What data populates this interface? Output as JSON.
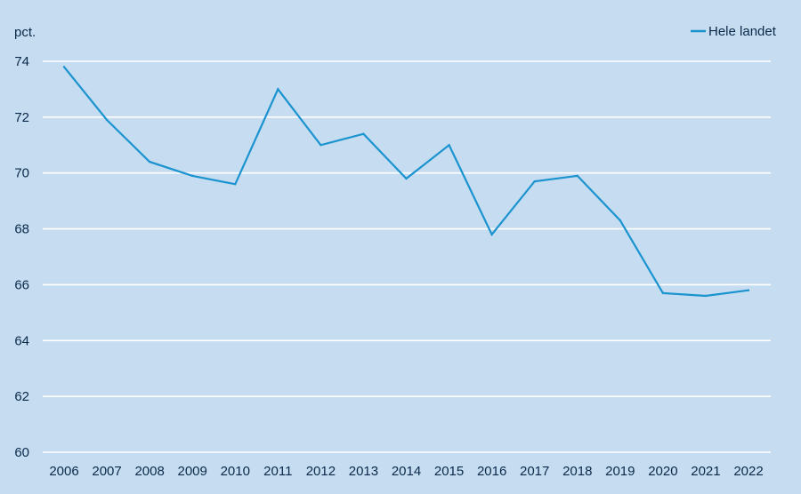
{
  "chart_data": {
    "type": "line",
    "ylabel": "pct.",
    "ylim": [
      60,
      74
    ],
    "yticks": [
      60,
      62,
      64,
      66,
      68,
      70,
      72,
      74
    ],
    "categories": [
      "2006",
      "2007",
      "2008",
      "2009",
      "2010",
      "2011",
      "2012",
      "2013",
      "2014",
      "2015",
      "2016",
      "2017",
      "2018",
      "2019",
      "2020",
      "2021",
      "2022"
    ],
    "series": [
      {
        "name": "Hele landet",
        "color": "#1a93cf",
        "values": [
          73.8,
          71.9,
          70.4,
          69.9,
          69.6,
          73.0,
          71.0,
          71.4,
          69.8,
          71.0,
          67.8,
          69.7,
          69.9,
          68.3,
          65.7,
          65.6,
          65.8
        ]
      }
    ],
    "grid": true,
    "legend": "top-right",
    "background": "#c5dcf1",
    "gridline_color": "#ffffff"
  }
}
